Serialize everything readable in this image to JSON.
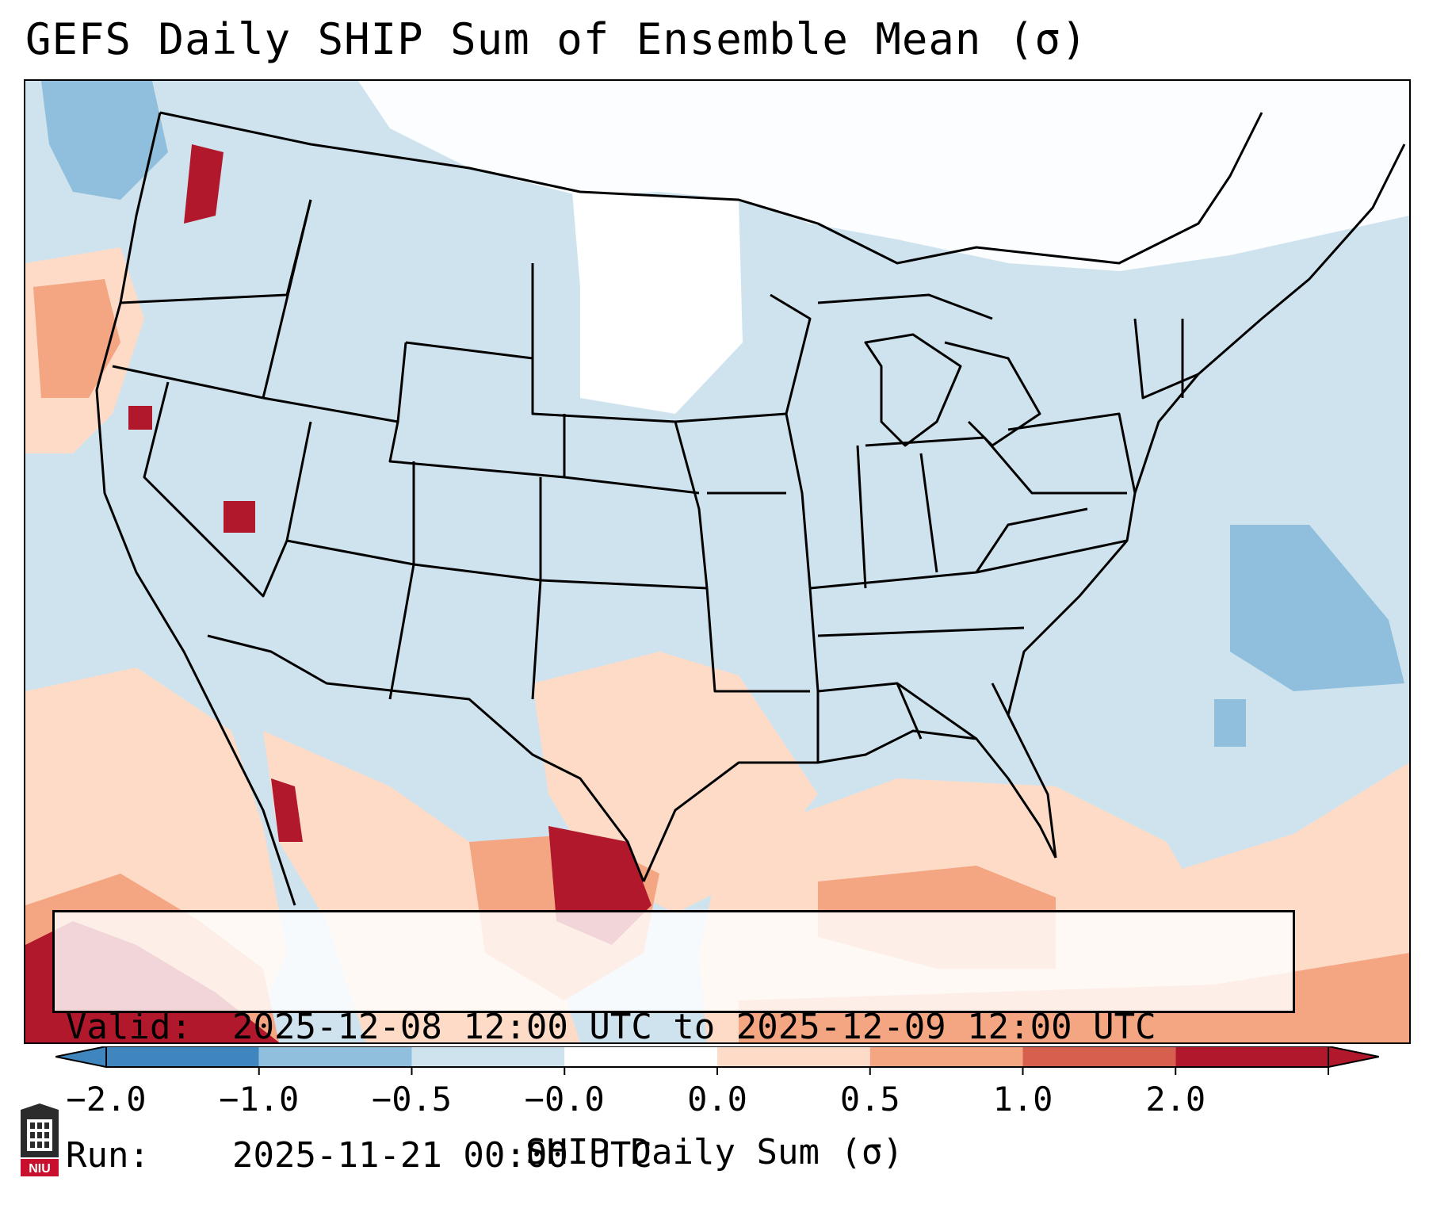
{
  "title": "GEFS Daily SHIP Sum of Ensemble Mean (σ)",
  "info": {
    "valid_label": "Valid:",
    "valid_value": "2025-12-08 12:00 UTC to 2025-12-09 12:00 UTC",
    "run_label": "Run:",
    "run_value": "2025-11-21 00:00 UTC"
  },
  "colorbar": {
    "label": "SHIP Daily Sum (σ)",
    "ticks": [
      "−2.0",
      "−1.0",
      "−0.5",
      "−0.0",
      "0.0",
      "0.5",
      "1.0",
      "2.0"
    ],
    "colors": [
      "#3f86bf",
      "#8fbfdc",
      "#cfe3ef",
      "#ffffff",
      "#fddbc7",
      "#f4a582",
      "#d6604d",
      "#b2182b"
    ]
  },
  "logo": {
    "text": "NIU",
    "name": "niu-logo"
  },
  "map": {
    "region": "Contiguous United States",
    "background_color": "#cfe3ef",
    "border_color": "#000000"
  }
}
